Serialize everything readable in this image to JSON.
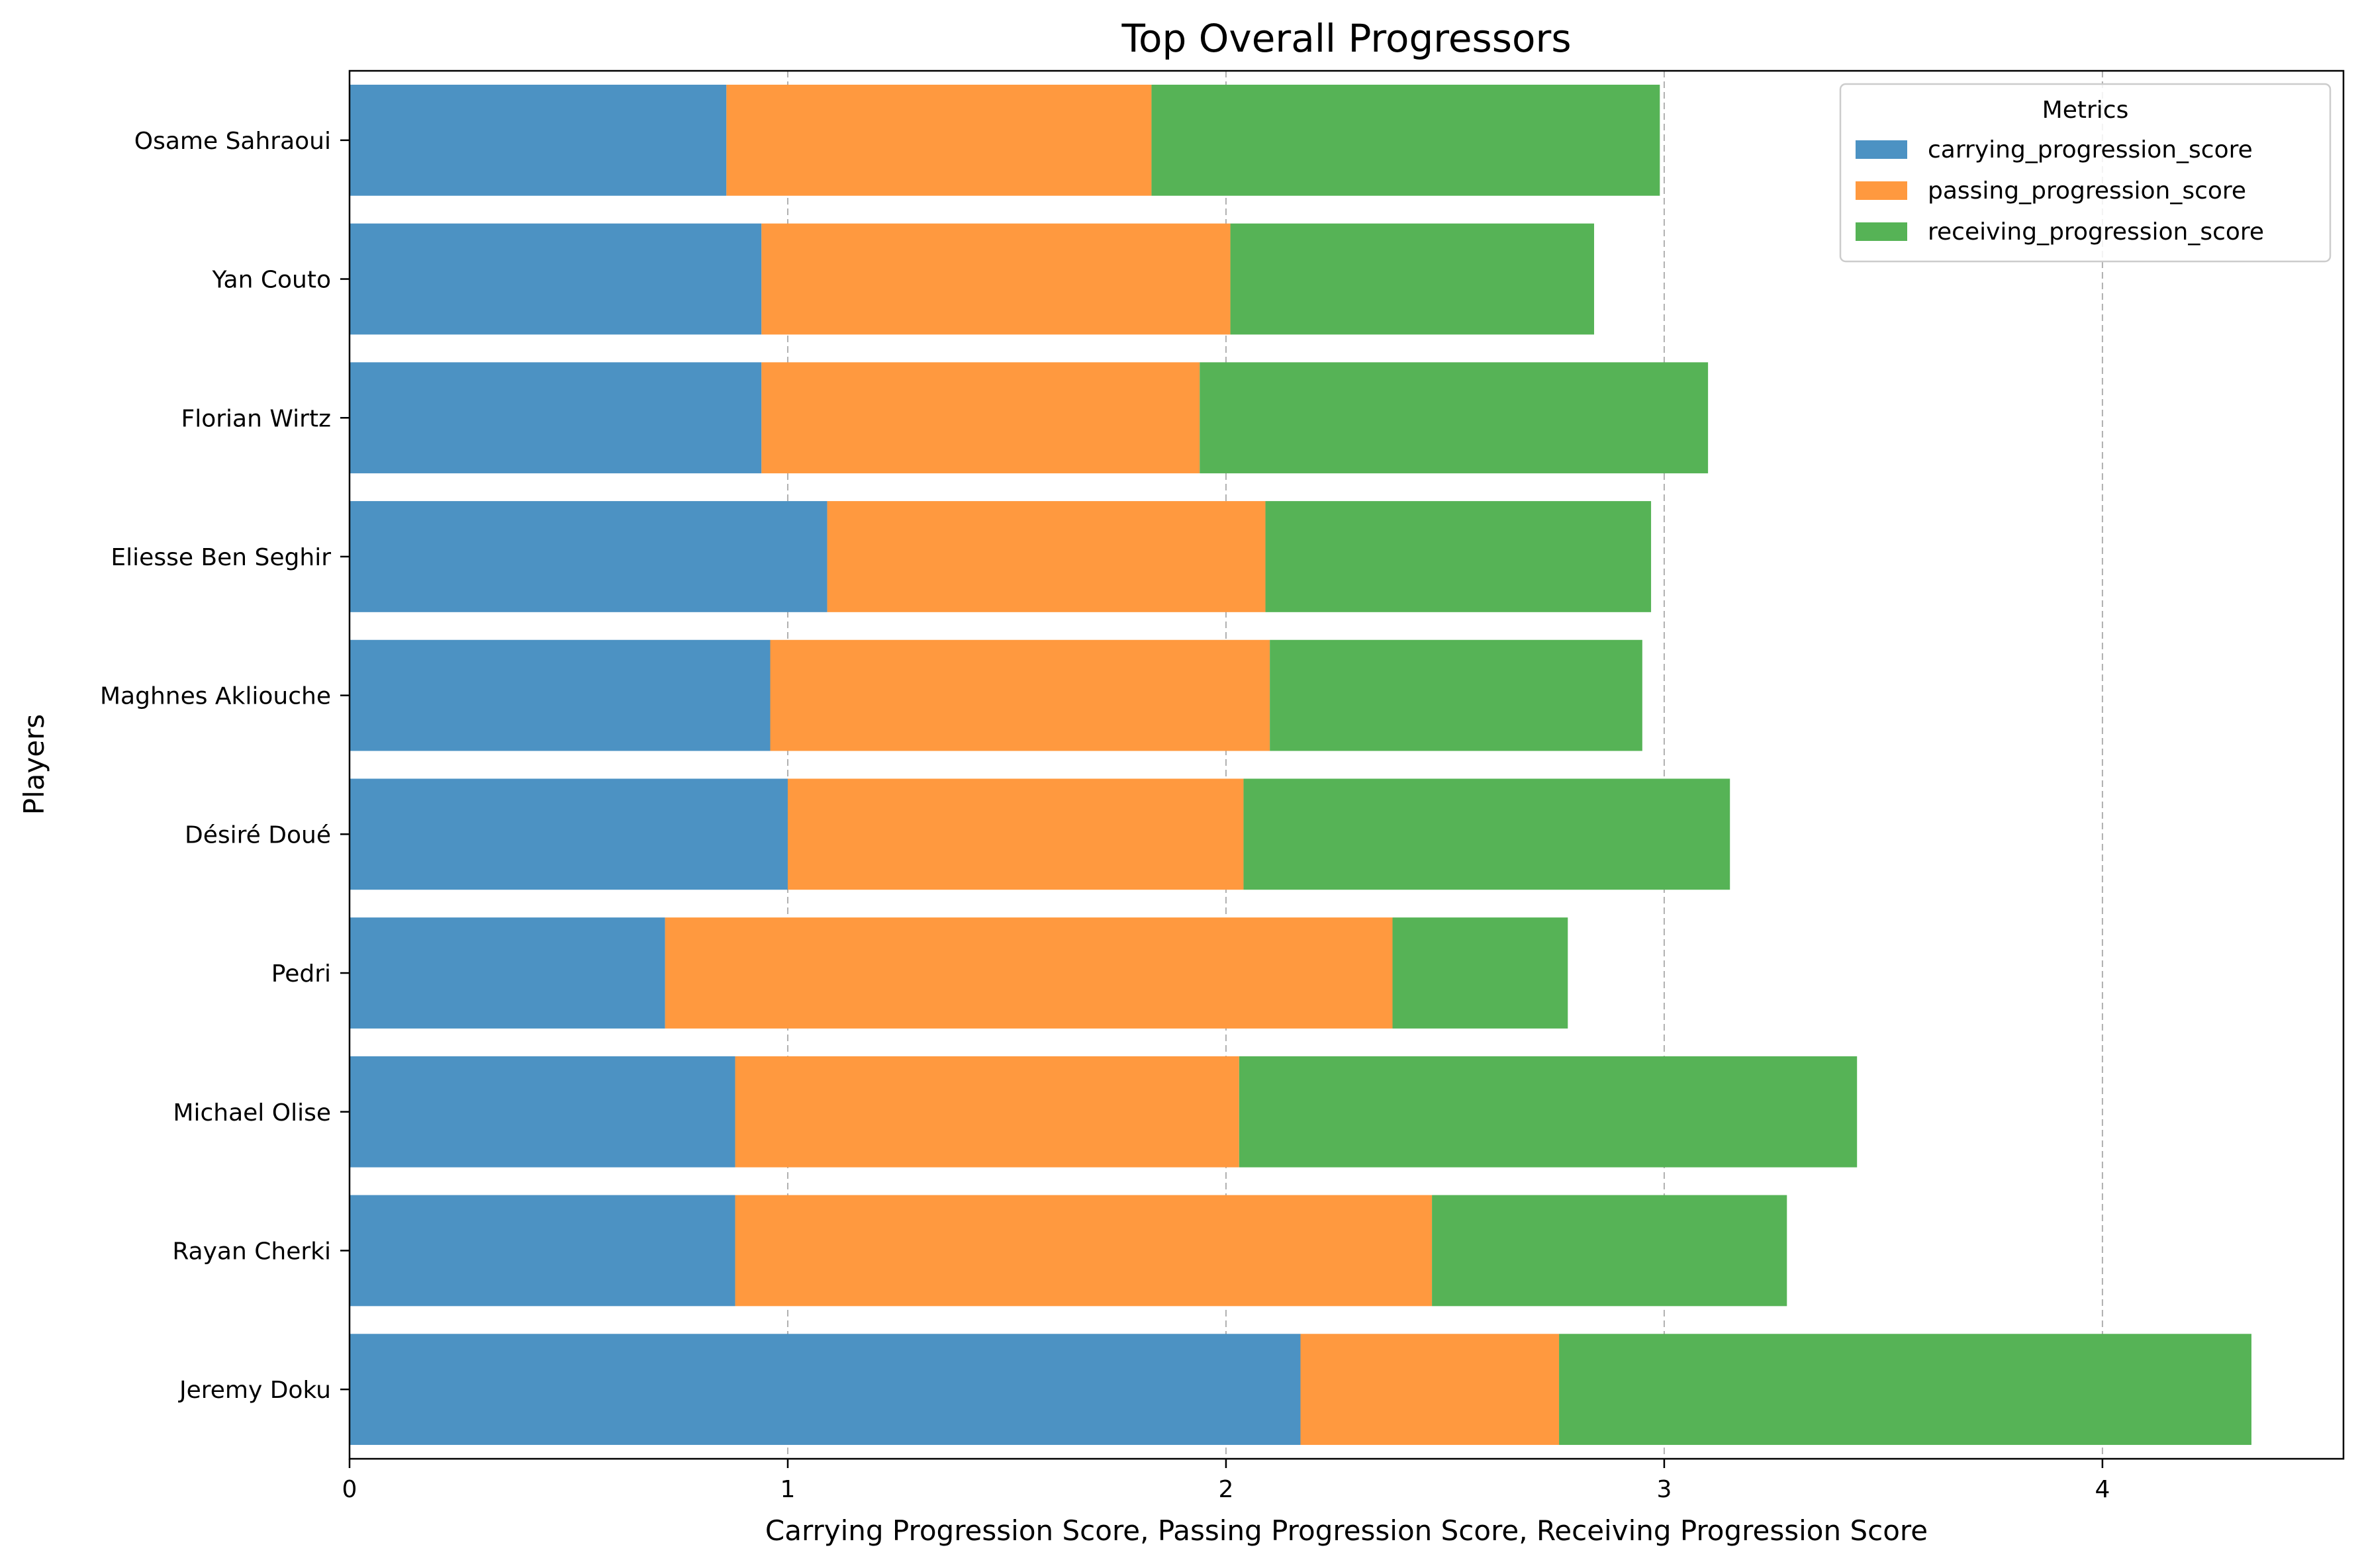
{
  "chart_data": {
    "type": "bar",
    "orientation": "horizontal",
    "stacked": true,
    "title": "Top Overall Progressors",
    "xlabel": "Carrying Progression Score, Passing Progression Score, Receiving Progression Score",
    "ylabel": "Players",
    "xlim": [
      0,
      4.55
    ],
    "xticks": [
      "0",
      "1",
      "2",
      "3",
      "4"
    ],
    "grid": "x-dashed",
    "legend": {
      "title": "Metrics",
      "position": "top-right"
    },
    "categories": [
      "Jeremy Doku",
      "Rayan Cherki",
      "Michael Olise",
      "Pedri",
      "Désiré Doué",
      "Maghnes Akliouche",
      "Eliesse Ben Seghir",
      "Florian Wirtz",
      "Yan Couto",
      "Osame Sahraoui"
    ],
    "series": [
      {
        "name": "carrying_progression_score",
        "color": "#4c92c3",
        "values": [
          2.17,
          0.88,
          0.88,
          0.72,
          1.0,
          0.96,
          1.09,
          0.94,
          0.94,
          0.86
        ]
      },
      {
        "name": "passing_progression_score",
        "color": "#ff993f",
        "values": [
          0.59,
          1.59,
          1.15,
          1.66,
          1.04,
          1.14,
          1.0,
          1.0,
          1.07,
          0.97
        ]
      },
      {
        "name": "receiving_progression_score",
        "color": "#56b356",
        "values": [
          1.58,
          0.81,
          1.41,
          0.4,
          1.11,
          0.85,
          0.88,
          1.16,
          0.83,
          1.16
        ]
      }
    ]
  }
}
